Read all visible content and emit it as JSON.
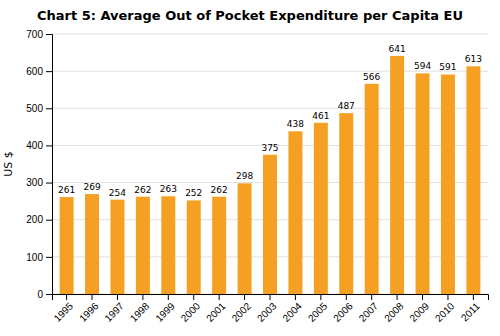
{
  "chart_data": {
    "type": "bar",
    "title": "Chart 5: Average Out of Pocket Expenditure per Capita EU",
    "ylabel": "US $",
    "categories": [
      "1995",
      "1996",
      "1997",
      "1998",
      "1999",
      "2000",
      "2001",
      "2002",
      "2003",
      "2004",
      "2005",
      "2006",
      "2007",
      "2008",
      "2009",
      "2010",
      "2011"
    ],
    "values": [
      261,
      269,
      254,
      262,
      263,
      252,
      262,
      298,
      375,
      438,
      461,
      487,
      566,
      641,
      594,
      591,
      613
    ],
    "color": "#F5A023",
    "ylim": [
      0,
      700
    ],
    "yticks": [
      0,
      100,
      200,
      300,
      400,
      500,
      600,
      700
    ],
    "grid": true,
    "data_labels": true
  }
}
